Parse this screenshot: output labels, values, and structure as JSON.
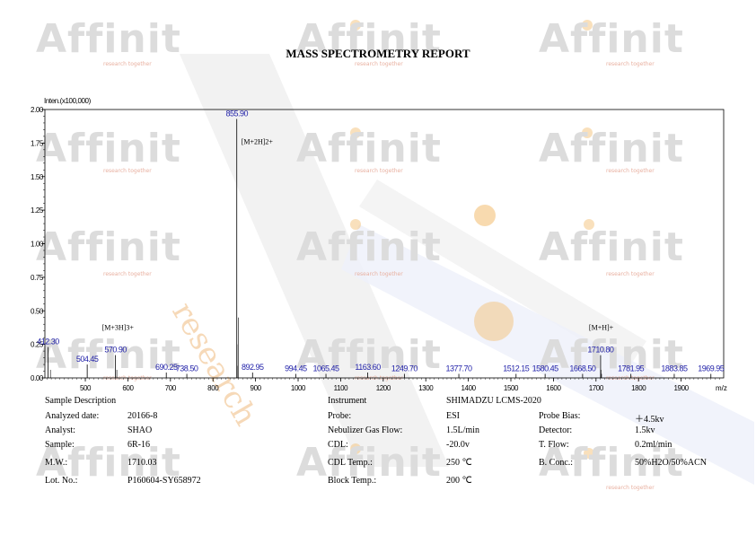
{
  "report": {
    "title": "MASS SPECTROMETRY REPORT"
  },
  "watermark": {
    "brand": "Affinit",
    "tagline": "research together",
    "big_text": "research"
  },
  "colors": {
    "peak_label": "#1f1fa8",
    "axis_text": "#000000",
    "watermark_gray": "#dcdcdc",
    "watermark_orange": "#f3c27a",
    "watermark_blue": "#6f7ed8"
  },
  "chart_data": {
    "type": "bar",
    "ylabel": "Inten.(x100,000)",
    "xlabel": "m/z",
    "xlim": [
      405,
      2000
    ],
    "ylim": [
      0,
      2.0
    ],
    "x_ticks": [
      500,
      600,
      700,
      800,
      900,
      1000,
      1100,
      1200,
      1300,
      1400,
      1500,
      1600,
      1700,
      1800,
      1900
    ],
    "y_ticks": [
      "0.00",
      "0.25",
      "0.50",
      "0.75",
      "1.00",
      "1.25",
      "1.50",
      "1.75",
      "2.00"
    ],
    "x_unit": "m/z",
    "peaks": [
      {
        "mz": 412.3,
        "intensity": 0.23,
        "label": "412.30"
      },
      {
        "mz": 504.45,
        "intensity": 0.1,
        "label": "504.45"
      },
      {
        "mz": 570.9,
        "intensity": 0.17,
        "label": "570.90"
      },
      {
        "mz": 690.25,
        "intensity": 0.04,
        "label": "690.25"
      },
      {
        "mz": 738.5,
        "intensity": 0.03,
        "label": "738.50"
      },
      {
        "mz": 855.9,
        "intensity": 1.93,
        "label": "855.90"
      },
      {
        "mz": 892.95,
        "intensity": 0.04,
        "label": "892.95"
      },
      {
        "mz": 994.45,
        "intensity": 0.03,
        "label": "994.45"
      },
      {
        "mz": 1065.45,
        "intensity": 0.03,
        "label": "1065.45"
      },
      {
        "mz": 1163.6,
        "intensity": 0.04,
        "label": "1163.60"
      },
      {
        "mz": 1249.7,
        "intensity": 0.03,
        "label": "1249.70"
      },
      {
        "mz": 1377.7,
        "intensity": 0.03,
        "label": "1377.70"
      },
      {
        "mz": 1512.15,
        "intensity": 0.03,
        "label": "1512.15"
      },
      {
        "mz": 1580.45,
        "intensity": 0.03,
        "label": "1580.45"
      },
      {
        "mz": 1668.5,
        "intensity": 0.03,
        "label": "1668.50"
      },
      {
        "mz": 1710.8,
        "intensity": 0.17,
        "label": "1710.80"
      },
      {
        "mz": 1781.95,
        "intensity": 0.03,
        "label": "1781.95"
      },
      {
        "mz": 1883.85,
        "intensity": 0.03,
        "label": "1883.85"
      },
      {
        "mz": 1969.95,
        "intensity": 0.03,
        "label": "1969.95"
      }
    ],
    "minor_peaks": [
      {
        "mz": 418.0,
        "intensity": 0.06
      },
      {
        "mz": 574.0,
        "intensity": 0.06
      },
      {
        "mz": 856.4,
        "intensity": 0.25
      },
      {
        "mz": 857.0,
        "intensity": 0.09
      },
      {
        "mz": 860.0,
        "intensity": 0.45
      },
      {
        "mz": 1711.8,
        "intensity": 0.06
      },
      {
        "mz": 1713.0,
        "intensity": 0.03
      }
    ],
    "annotations": [
      {
        "text": "[M+2H]2+",
        "mz": 855.9
      },
      {
        "text": "[M+3H]3+",
        "mz": 570.9
      },
      {
        "text": "[M+H]+",
        "mz": 1710.8
      }
    ]
  },
  "info": {
    "sample_description": "Sample Description",
    "instrument_label": "Instrument",
    "instrument_value": "SHIMADZU LCMS-2020",
    "rows_left": [
      {
        "label": "Analyzed date:",
        "value": "20166-8"
      },
      {
        "label": "Analyst:",
        "value": "SHAO"
      },
      {
        "label": "Sample:",
        "value": "6R-16"
      },
      {
        "label": "M.W.:",
        "value": "1710.03"
      },
      {
        "label": "Lot. No.:",
        "value": "P160604-SY658972"
      }
    ],
    "rows_mid": [
      {
        "label": "Probe:",
        "value": "ESI"
      },
      {
        "label": "Nebulizer Gas Flow:",
        "value": "1.5L/min"
      },
      {
        "label": "CDL:",
        "value": "-20.0v"
      },
      {
        "label": "CDL Temp.:",
        "value": "250 ℃"
      },
      {
        "label": "Block Temp.:",
        "value": "200 ℃"
      }
    ],
    "rows_right": [
      {
        "label": "Probe Bias:",
        "value": "＋4.5kv"
      },
      {
        "label": "Detector:",
        "value": "1.5kv"
      },
      {
        "label": "T. Flow:",
        "value": "0.2ml/min"
      },
      {
        "label": "B. Conc.:",
        "value": "50%H2O/50%ACN"
      }
    ]
  }
}
